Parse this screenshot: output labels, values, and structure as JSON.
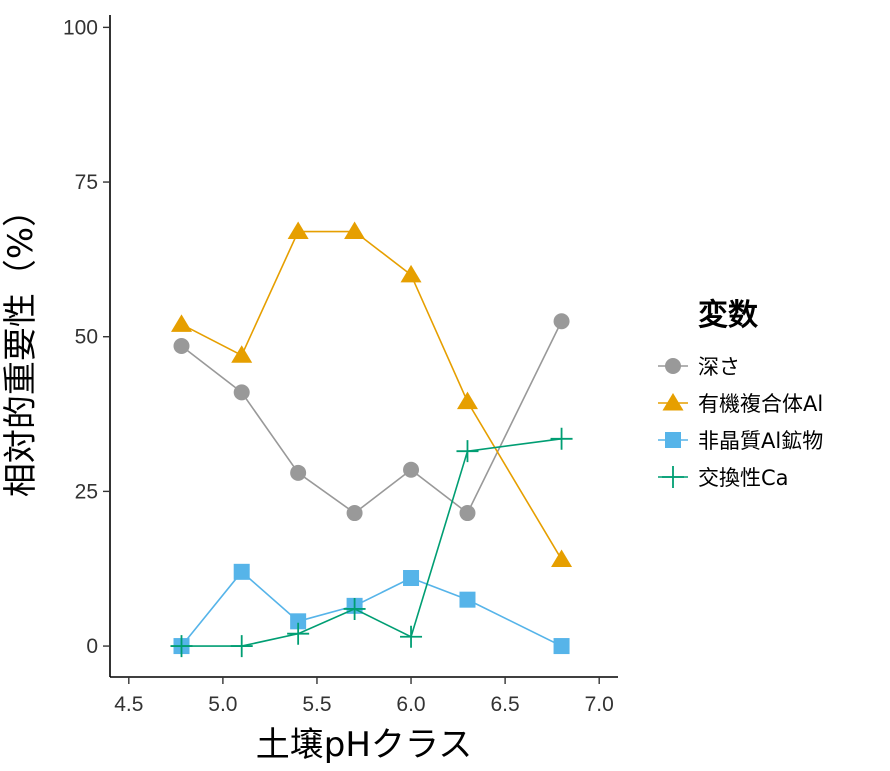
{
  "chart_data": {
    "type": "line",
    "xlabel": "土壌pHクラス",
    "ylabel": "相対的重要性（%）",
    "xlim": [
      4.4,
      7.1
    ],
    "ylim": [
      -5,
      102
    ],
    "xticks": [
      4.5,
      5.0,
      5.5,
      6.0,
      6.5,
      7.0
    ],
    "xtick_labels": [
      "4.5",
      "5.0",
      "5.5",
      "6.0",
      "6.5",
      "7.0"
    ],
    "yticks": [
      0,
      25,
      50,
      75,
      100
    ],
    "ytick_labels": [
      "0",
      "25",
      "50",
      "75",
      "100"
    ],
    "grid": false,
    "legend": {
      "title": "変数",
      "position": "right"
    },
    "x": [
      4.78,
      5.1,
      5.4,
      5.7,
      6.0,
      6.3,
      6.8
    ],
    "series": [
      {
        "name": "深さ",
        "marker": "circle",
        "color": "#999999",
        "values": [
          48.5,
          41,
          28,
          21.5,
          28.5,
          21.5,
          52.5
        ]
      },
      {
        "name": "有機複合体Al",
        "marker": "triangle",
        "color": "#E69F00",
        "values": [
          52,
          47,
          67,
          67,
          60,
          39.5,
          14
        ]
      },
      {
        "name": "非晶質Al鉱物",
        "marker": "square",
        "color": "#56B4E9",
        "values": [
          0,
          12,
          4,
          6.5,
          11,
          7.5,
          0
        ]
      },
      {
        "name": "交換性Ca",
        "marker": "plus",
        "color": "#009E73",
        "values": [
          0,
          0,
          2,
          6,
          1.5,
          31.5,
          33.5
        ]
      }
    ]
  }
}
